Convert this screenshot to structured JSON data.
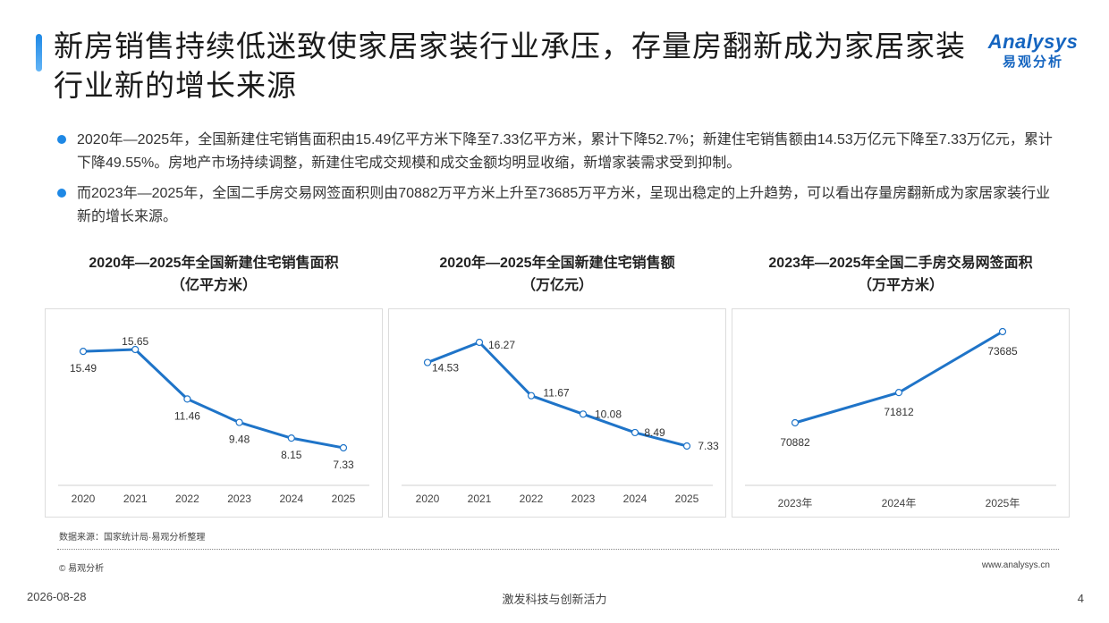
{
  "header": {
    "title": "新房销售持续低迷致使家居家装行业承压，存量房翻新成为家居家装行业新的增长来源",
    "logo_en": "Analysys",
    "logo_cn": "易观分析"
  },
  "bullets": [
    "2020年—2025年，全国新建住宅销售面积由15.49亿平方米下降至7.33亿平方米，累计下降52.7%；新建住宅销售额由14.53万亿元下降至7.33万亿元，累计下降49.55%。房地产市场持续调整，新建住宅成交规模和成交金额均明显收缩，新增家装需求受到抑制。",
    "而2023年—2025年，全国二手房交易网签面积则由70882万平方米上升至73685万平方米，呈现出稳定的上升趋势，可以看出存量房翻新成为家居家装行业新的增长来源。"
  ],
  "chart_data": [
    {
      "type": "line",
      "title": "2020年—2025年全国新建住宅销售面积",
      "subtitle": "（亿平方米）",
      "categories": [
        "2020",
        "2021",
        "2022",
        "2023",
        "2024",
        "2025"
      ],
      "values": [
        15.49,
        15.65,
        11.46,
        9.48,
        8.15,
        7.33
      ],
      "labels": [
        "15.49",
        "15.65",
        "11.46",
        "9.48",
        "8.15",
        "7.33"
      ],
      "color": "#1f74c8"
    },
    {
      "type": "line",
      "title": "2020年—2025年全国新建住宅销售额",
      "subtitle": "（万亿元）",
      "categories": [
        "2020",
        "2021",
        "2022",
        "2023",
        "2024",
        "2025"
      ],
      "values": [
        14.53,
        16.27,
        11.67,
        10.08,
        8.49,
        7.33
      ],
      "labels": [
        "14.53",
        "16.27",
        "11.67",
        "10.08",
        "8.49",
        "7.33"
      ],
      "color": "#1f74c8"
    },
    {
      "type": "line",
      "title": "2023年—2025年全国二手房交易网签面积",
      "subtitle": "（万平方米）",
      "categories": [
        "2023年",
        "2024年",
        "2025年"
      ],
      "values": [
        70882,
        71812,
        73685
      ],
      "labels": [
        "70882",
        "71812",
        "73685"
      ],
      "color": "#1f74c8"
    }
  ],
  "footer": {
    "source": "数据来源：国家统计局·易观分析整理",
    "copyright": "© 易观分析",
    "website": "www.analysys.cn",
    "date": "2026-08-28",
    "slogan": "激发科技与创新活力",
    "page": "4"
  }
}
